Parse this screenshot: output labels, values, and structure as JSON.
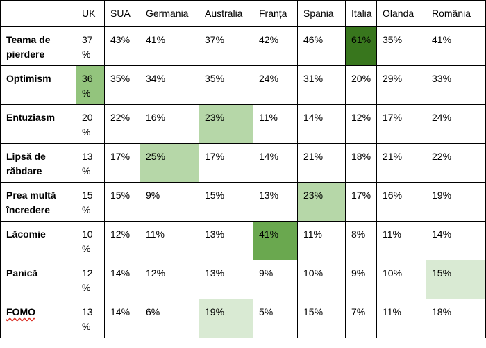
{
  "table": {
    "columns": [
      "",
      "UK",
      "SUA",
      "Germania",
      "Australia",
      "Franța",
      "Spania",
      "Italia",
      "Olanda",
      "România"
    ],
    "rows": [
      {
        "label": "Teama de pierdere",
        "values": [
          "37 %",
          "43%",
          "41%",
          "37%",
          "42%",
          "46%",
          "61%",
          "35%",
          "41%"
        ],
        "highlight_col": 6,
        "highlight_color": "#38761d"
      },
      {
        "label": "Optimism",
        "values": [
          "36 %",
          "35%",
          "34%",
          "35%",
          "24%",
          "31%",
          "20%",
          "29%",
          "33%"
        ],
        "highlight_col": 0,
        "highlight_color": "#93c47d"
      },
      {
        "label": "Entuziasm",
        "values": [
          "20 %",
          "22%",
          "16%",
          "23%",
          "11%",
          "14%",
          "12%",
          "17%",
          "24%"
        ],
        "highlight_col": 3,
        "highlight_color": "#b6d7a8"
      },
      {
        "label": "Lipsă de răbdare",
        "values": [
          "13 %",
          "17%",
          "25%",
          "17%",
          "14%",
          "21%",
          "18%",
          "21%",
          "22%"
        ],
        "highlight_col": 2,
        "highlight_color": "#b6d7a8"
      },
      {
        "label": "Prea multă încredere",
        "values": [
          "15 %",
          "15%",
          "9%",
          "15%",
          "13%",
          "23%",
          "17%",
          "16%",
          "19%"
        ],
        "highlight_col": 5,
        "highlight_color": "#b6d7a8"
      },
      {
        "label": "Lăcomie",
        "values": [
          "10 %",
          "12%",
          "11%",
          "13%",
          "41%",
          "11%",
          "8%",
          "11%",
          "14%"
        ],
        "highlight_col": 4,
        "highlight_color": "#6aa84f"
      },
      {
        "label": "Panică",
        "values": [
          "12 %",
          "14%",
          "12%",
          "13%",
          "9%",
          "10%",
          "9%",
          "10%",
          "15%"
        ],
        "highlight_col": 8,
        "highlight_color": "#d9ead3"
      },
      {
        "label": "FOMO",
        "values": [
          "13 %",
          "14%",
          "6%",
          "19%",
          "5%",
          "15%",
          "7%",
          "11%",
          "18%"
        ],
        "highlight_col": 3,
        "highlight_color": "#d9ead3",
        "label_spellcheck": true
      }
    ]
  }
}
